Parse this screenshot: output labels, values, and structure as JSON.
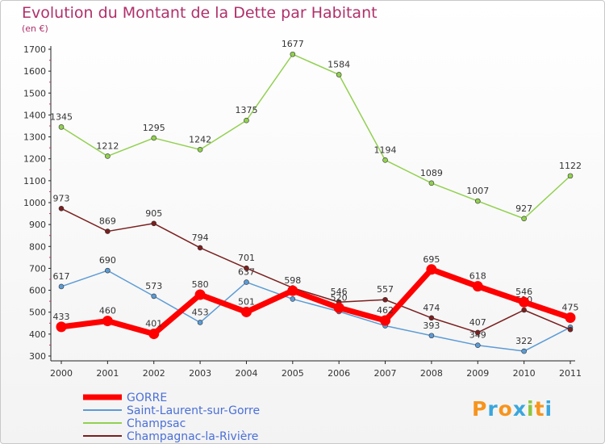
{
  "chart_data": {
    "type": "line",
    "title": "Evolution du Montant de la Dette par Habitant",
    "subtitle": "(en €)",
    "x": [
      2000,
      2001,
      2002,
      2003,
      2004,
      2005,
      2006,
      2007,
      2008,
      2009,
      2010,
      2011
    ],
    "y_ticks": [
      300,
      400,
      500,
      600,
      700,
      800,
      900,
      1000,
      1100,
      1200,
      1300,
      1400,
      1500,
      1600,
      1700
    ],
    "ylim": [
      300,
      1700
    ],
    "grid": false,
    "legend_position": "bottom-left",
    "series": [
      {
        "name": "Saint-Laurent-sur-Gorre",
        "color": "#5b9bd5",
        "width": 1.5,
        "values": [
          617,
          690,
          573,
          453,
          637,
          560,
          503,
          438,
          393,
          349,
          322,
          431
        ],
        "labels": [
          "617",
          "690",
          "573",
          "453",
          "637",
          "",
          "",
          "",
          "393",
          "349",
          "322",
          ""
        ]
      },
      {
        "name": "Champsac",
        "color": "#92d050",
        "width": 1.5,
        "values": [
          1345,
          1212,
          1295,
          1242,
          1375,
          1677,
          1584,
          1194,
          1089,
          1007,
          927,
          1122
        ],
        "labels": [
          "1345",
          "1212",
          "1295",
          "1242",
          "1375",
          "1677",
          "1584",
          "1194",
          "1089",
          "1007",
          "927",
          "1122"
        ]
      },
      {
        "name": "Champagnac-la-Rivière",
        "color": "#7b1f1f",
        "width": 1.5,
        "values": [
          973,
          869,
          905,
          794,
          701,
          611,
          546,
          557,
          474,
          407,
          510,
          421
        ],
        "labels": [
          "973",
          "869",
          "905",
          "794",
          "701",
          "",
          "546",
          "557",
          "474",
          "407",
          "510",
          ""
        ]
      },
      {
        "name": "GORRE",
        "color": "#ff0000",
        "width": 7,
        "values": [
          433,
          460,
          401,
          580,
          501,
          598,
          520,
          462,
          695,
          618,
          546,
          475
        ],
        "labels": [
          "433",
          "460",
          "401",
          "580",
          "501",
          "598",
          "520",
          "462",
          "695",
          "618",
          "546",
          "475"
        ]
      }
    ],
    "legend": [
      {
        "name": "GORRE",
        "color": "#ff0000",
        "width": 7
      },
      {
        "name": "Saint-Laurent-sur-Gorre",
        "color": "#5b9bd5",
        "width": 2
      },
      {
        "name": "Champsac",
        "color": "#92d050",
        "width": 2
      },
      {
        "name": "Champagnac-la-Rivière",
        "color": "#7b1f1f",
        "width": 2
      }
    ]
  },
  "logo": {
    "text": "Proxiti"
  }
}
